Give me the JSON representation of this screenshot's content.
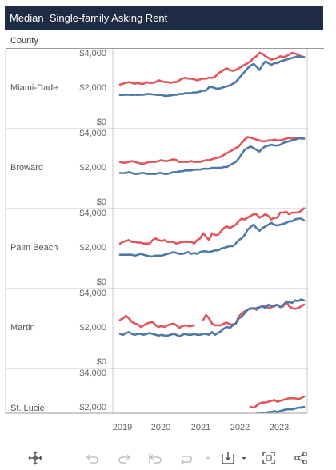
{
  "title": "Median  Single-family Asking Rent",
  "county_header": "County",
  "colors": {
    "series_a": "#e0565b",
    "series_b": "#4e79a7",
    "title_bg": "#1e2b45"
  },
  "chart_data": {
    "type": "line",
    "x_ticks": [
      "2019",
      "2020",
      "2021",
      "2022",
      "2023"
    ],
    "y_tick_labels": [
      "$0",
      "$2,000",
      "$4,000"
    ],
    "ylim": [
      0,
      4500
    ],
    "grid": false,
    "panels": [
      {
        "county": "Miami-Dade",
        "series": [
          {
            "color": "#e0565b",
            "values": [
              2150,
              2200,
              2250,
              2300,
              2250,
              2200,
              2250,
              2200,
              2200,
              2300,
              2250,
              2250,
              2300,
              2400,
              2350,
              2300,
              2300,
              2250,
              2300,
              2300,
              2400,
              2500,
              2550,
              2500,
              2500,
              2450,
              2400,
              2450,
              2500,
              2500,
              2550,
              2550,
              2600,
              2800,
              2900,
              3000,
              3100,
              3000,
              2950,
              3000,
              3100,
              3200,
              3300,
              3400,
              3500,
              3700,
              3800,
              4000,
              3950,
              3800,
              3700,
              3600,
              3650,
              3700,
              3800,
              3750,
              3800,
              3900,
              4000,
              3950,
              3900,
              3800,
              3750
            ]
          },
          {
            "color": "#4e79a7",
            "values": [
              1550,
              1550,
              1560,
              1560,
              1550,
              1560,
              1550,
              1560,
              1560,
              1600,
              1600,
              1580,
              1560,
              1550,
              1550,
              1500,
              1500,
              1520,
              1550,
              1560,
              1600,
              1600,
              1650,
              1650,
              1650,
              1700,
              1700,
              1750,
              1800,
              1800,
              2000,
              2000,
              1950,
              1900,
              1950,
              2000,
              2050,
              2100,
              2200,
              2300,
              2500,
              2700,
              2900,
              3100,
              3250,
              3350,
              3200,
              3000,
              3300,
              3500,
              3400,
              3300,
              3400,
              3400,
              3500,
              3550,
              3600,
              3650,
              3700,
              3750,
              3800,
              3750,
              3750
            ]
          }
        ]
      },
      {
        "county": "Broward",
        "series": [
          {
            "color": "#e0565b",
            "values": [
              2300,
              2250,
              2250,
              2300,
              2350,
              2300,
              2250,
              2200,
              2200,
              2250,
              2300,
              2300,
              2300,
              2350,
              2400,
              2350,
              2350,
              2400,
              2450,
              2400,
              2300,
              2300,
              2300,
              2300,
              2350,
              2300,
              2300,
              2300,
              2350,
              2400,
              2400,
              2450,
              2500,
              2550,
              2600,
              2700,
              2800,
              2900,
              3000,
              3100,
              3200,
              3400,
              3600,
              3750,
              3700,
              3650,
              3600,
              3550,
              3500,
              3500,
              3550,
              3550,
              3600,
              3550,
              3550,
              3600,
              3650,
              3700,
              3650,
              3700,
              3700,
              3650,
              3650
            ]
          },
          {
            "color": "#4e79a7",
            "values": [
              1650,
              1650,
              1650,
              1700,
              1650,
              1600,
              1600,
              1650,
              1650,
              1600,
              1600,
              1600,
              1600,
              1650,
              1650,
              1600,
              1600,
              1650,
              1700,
              1700,
              1750,
              1750,
              1800,
              1800,
              1800,
              1850,
              1850,
              1850,
              1900,
              1900,
              1900,
              1950,
              1950,
              1950,
              1950,
              2000,
              2000,
              2100,
              2200,
              2300,
              2500,
              2750,
              3000,
              3100,
              3200,
              3100,
              3000,
              2900,
              3100,
              3200,
              3250,
              3300,
              3250,
              3250,
              3300,
              3400,
              3450,
              3500,
              3550,
              3600,
              3650,
              3700,
              3650
            ]
          }
        ]
      },
      {
        "county": "Palm Beach",
        "series": [
          {
            "color": "#e0565b",
            "values": [
              2200,
              2300,
              2350,
              2400,
              2300,
              2300,
              2250,
              2250,
              2200,
              2200,
              2200,
              2400,
              2500,
              2400,
              2350,
              2400,
              2300,
              2300,
              2300,
              2200,
              2250,
              2300,
              2300,
              2300,
              2300,
              2200,
              2400,
              2500,
              2800,
              2600,
              2400,
              2800,
              2700,
              2700,
              2900,
              3100,
              3200,
              3100,
              3200,
              3300,
              3500,
              3650,
              3600,
              3700,
              3800,
              3900,
              3900,
              3700,
              3800,
              3900,
              3800,
              3600,
              3700,
              3700,
              4000,
              4000,
              4050,
              3900,
              4000,
              4000,
              4000,
              4100,
              4250
            ]
          },
          {
            "color": "#4e79a7",
            "values": [
              1550,
              1550,
              1550,
              1550,
              1550,
              1500,
              1550,
              1600,
              1550,
              1500,
              1450,
              1450,
              1500,
              1500,
              1500,
              1550,
              1600,
              1650,
              1700,
              1650,
              1600,
              1600,
              1650,
              1700,
              1600,
              1650,
              1600,
              1700,
              1750,
              1750,
              1700,
              1750,
              1800,
              1800,
              1900,
              1950,
              2000,
              2050,
              2050,
              2200,
              2400,
              2500,
              2700,
              3000,
              3150,
              3300,
              3100,
              2950,
              3100,
              3200,
              3300,
              3400,
              3300,
              3250,
              3300,
              3350,
              3400,
              3500,
              3500,
              3600,
              3650,
              3650,
              3550
            ]
          }
        ]
      },
      {
        "county": "Martin",
        "series": [
          {
            "color": "#e0565b",
            "values": [
              2400,
              2500,
              2650,
              2500,
              2300,
              2200,
              2150,
              2000,
              2100,
              2200,
              2250,
              2300,
              2100,
              2000,
              2050,
              2000,
              2100,
              2150,
              2200,
              2100,
              1950,
              2050,
              2100,
              2050,
              2050,
              2100,
              null,
              null,
              2400,
              2700,
              2500,
              2200,
              2100,
              2100,
              2100,
              2200,
              2250,
              2150,
              2150,
              2200,
              2600,
              2800,
              2900,
              3000,
              3050,
              3100,
              3000,
              3150,
              3200,
              3250,
              3100,
              3150,
              3200,
              3300,
              3150,
              3200,
              3500,
              3200,
              3100,
              3050,
              3100,
              3200,
              3300
            ]
          },
          {
            "color": "#4e79a7",
            "values": [
              1600,
              1550,
              1650,
              1700,
              1600,
              1550,
              1600,
              1600,
              1550,
              1600,
              1650,
              1600,
              1550,
              1500,
              1550,
              1500,
              1500,
              1550,
              1600,
              1550,
              1450,
              1550,
              1600,
              1550,
              1550,
              1600,
              1550,
              1550,
              1600,
              1600,
              1550,
              1700,
              1550,
              1650,
              1750,
              1900,
              2000,
              1950,
              2100,
              2200,
              2500,
              2600,
              2800,
              3000,
              3100,
              3050,
              3100,
              3150,
              3200,
              3100,
              3300,
              3200,
              3250,
              3300,
              3150,
              3300,
              3400,
              3450,
              3400,
              3550,
              3500,
              3600,
              3550
            ]
          }
        ]
      },
      {
        "county": "St. Lucie",
        "series": [
          {
            "color": "#e0565b",
            "values": [
              null,
              null,
              null,
              null,
              null,
              null,
              null,
              null,
              null,
              null,
              null,
              null,
              null,
              null,
              null,
              null,
              null,
              null,
              null,
              null,
              null,
              null,
              null,
              null,
              null,
              null,
              null,
              null,
              null,
              null,
              null,
              null,
              null,
              null,
              null,
              null,
              null,
              null,
              null,
              null,
              null,
              null,
              null,
              null,
              2000,
              1950,
              2050,
              2200,
              2250,
              2250,
              2300,
              2350,
              2400,
              2300,
              2350,
              2400,
              2450,
              2500,
              2500,
              2500,
              2450,
              2500,
              2600
            ]
          },
          {
            "color": "#4e79a7",
            "values": [
              null,
              null,
              null,
              null,
              null,
              null,
              null,
              null,
              null,
              null,
              null,
              null,
              null,
              null,
              null,
              null,
              null,
              null,
              null,
              null,
              null,
              null,
              null,
              null,
              null,
              null,
              null,
              null,
              null,
              null,
              null,
              null,
              null,
              null,
              null,
              null,
              null,
              null,
              null,
              null,
              null,
              null,
              null,
              null,
              1500,
              1550,
              1600,
              1600,
              1650,
              1650,
              1700,
              1700,
              1750,
              1700,
              1750,
              1800,
              1850,
              1850,
              1850,
              1900,
              1950,
              1950,
              2000
            ]
          }
        ]
      }
    ]
  }
}
